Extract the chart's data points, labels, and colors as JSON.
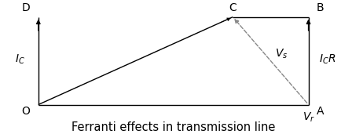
{
  "title": "Ferranti effects in transmission line",
  "title_fontsize": 10.5,
  "bg_color": "#ffffff",
  "line_color": "#000000",
  "dashed_color": "#888888",
  "points": {
    "O": [
      0.0,
      0.0
    ],
    "A": [
      1.0,
      0.0
    ],
    "B": [
      1.0,
      1.0
    ],
    "C": [
      0.72,
      1.0
    ],
    "D": [
      0.0,
      1.0
    ]
  },
  "solid_segments": [
    [
      "O",
      "C"
    ],
    [
      "O",
      "A"
    ],
    [
      "C",
      "B"
    ],
    [
      "B",
      "A"
    ],
    [
      "D",
      "O"
    ]
  ],
  "label_fontsize": 10,
  "xlim": [
    -0.14,
    1.2
  ],
  "ylim": [
    -0.22,
    1.18
  ]
}
